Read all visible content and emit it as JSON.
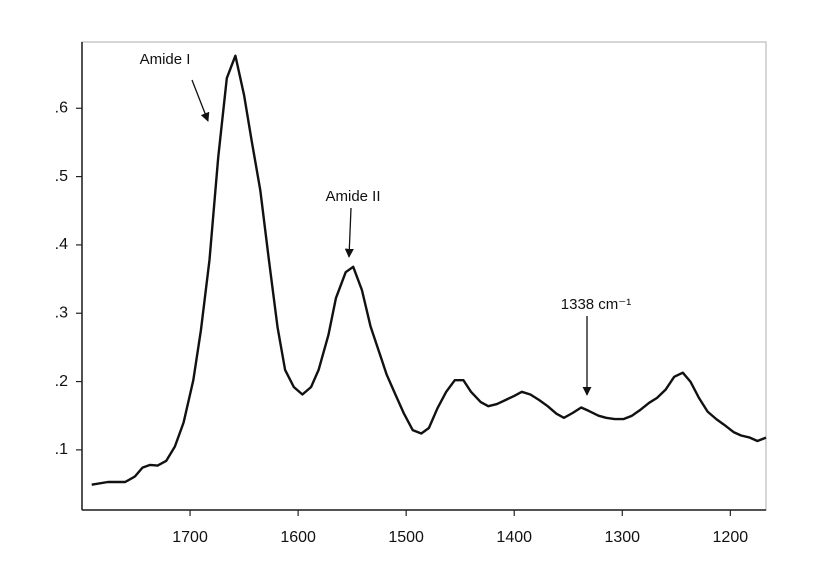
{
  "chart_data": {
    "type": "line",
    "annotations": [
      "Amide I",
      "Amide II",
      "1338 cm⁻¹"
    ],
    "x": [
      1791,
      1776,
      1760,
      1751,
      1744,
      1737,
      1730,
      1722,
      1714,
      1706,
      1697,
      1690,
      1682,
      1674,
      1666,
      1658,
      1650,
      1643,
      1635,
      1627,
      1619,
      1612,
      1604,
      1596,
      1588,
      1581,
      1572,
      1565,
      1556,
      1549,
      1541,
      1533,
      1525,
      1518,
      1510,
      1502,
      1494,
      1486,
      1479,
      1471,
      1463,
      1455,
      1447,
      1440,
      1431,
      1424,
      1416,
      1408,
      1400,
      1393,
      1385,
      1377,
      1369,
      1361,
      1354,
      1346,
      1338,
      1331,
      1322,
      1315,
      1307,
      1299,
      1291,
      1283,
      1275,
      1268,
      1260,
      1252,
      1244,
      1237,
      1229,
      1221,
      1213,
      1206,
      1197,
      1190,
      1182,
      1175,
      1167
    ],
    "values": [
      0.049,
      0.053,
      0.053,
      0.061,
      0.074,
      0.078,
      0.077,
      0.084,
      0.105,
      0.14,
      0.202,
      0.275,
      0.378,
      0.528,
      0.644,
      0.677,
      0.619,
      0.553,
      0.48,
      0.378,
      0.279,
      0.217,
      0.192,
      0.181,
      0.192,
      0.217,
      0.268,
      0.322,
      0.36,
      0.368,
      0.334,
      0.281,
      0.243,
      0.21,
      0.181,
      0.153,
      0.129,
      0.124,
      0.132,
      0.161,
      0.185,
      0.202,
      0.202,
      0.185,
      0.17,
      0.164,
      0.167,
      0.173,
      0.179,
      0.185,
      0.181,
      0.173,
      0.164,
      0.153,
      0.147,
      0.154,
      0.162,
      0.157,
      0.15,
      0.147,
      0.145,
      0.145,
      0.15,
      0.159,
      0.169,
      0.176,
      0.188,
      0.207,
      0.213,
      0.2,
      0.176,
      0.156,
      0.145,
      0.137,
      0.126,
      0.121,
      0.118,
      0.113,
      0.118
    ],
    "color": "#111111",
    "xlim": [
      1800,
      1167
    ],
    "xticks": [
      1700,
      1600,
      1500,
      1400,
      1300,
      1200
    ],
    "ylim": [
      0.012,
      0.697
    ],
    "yticks": [
      {
        "value": 0.1,
        "label": ".1"
      },
      {
        "value": 0.2,
        "label": ".2"
      },
      {
        "value": 0.3,
        "label": ".3"
      },
      {
        "value": 0.4,
        "label": ".4"
      },
      {
        "value": 0.5,
        "label": ".5"
      },
      {
        "value": 0.6,
        "label": ".6"
      }
    ],
    "grid": false
  }
}
